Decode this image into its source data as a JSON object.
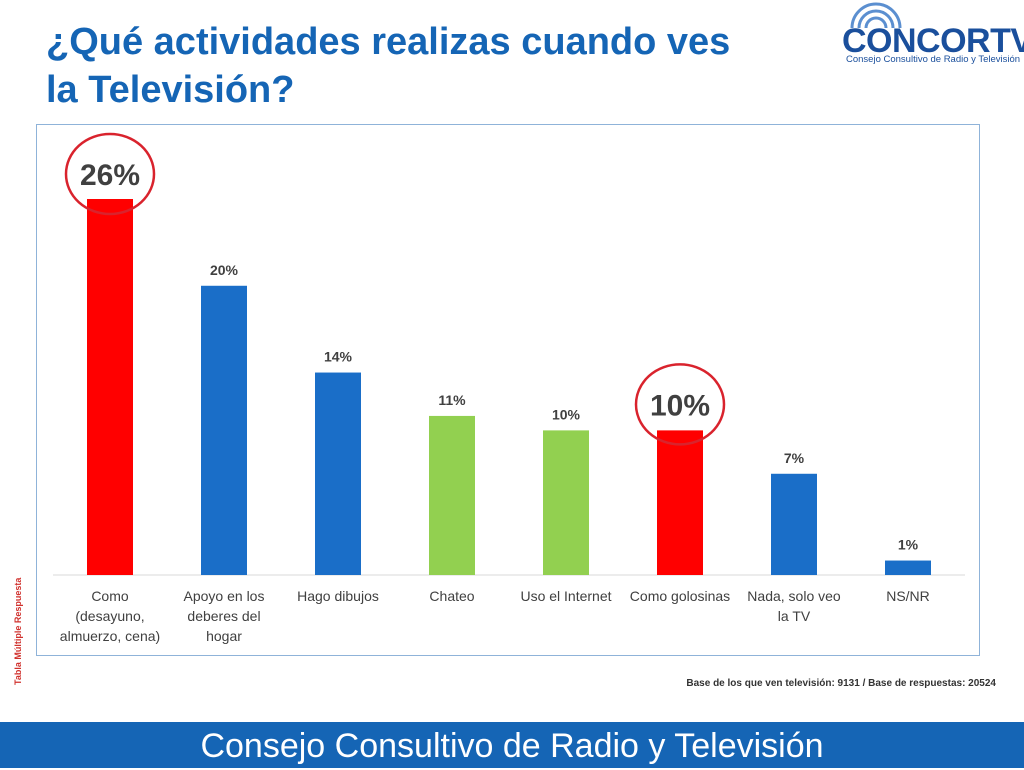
{
  "title_line1": "¿Qué actividades realizas cuando ves",
  "title_line2": "la Televisión?",
  "logo": {
    "name": "CONCORTV",
    "subtitle": "Consejo Consultivo de Radio y Televisión"
  },
  "side_note": "Tabla Múltiple Respuesta",
  "base_note": "Base de los que ven televisión: 9131 / Base de respuestas: 20524",
  "footer": "Consejo Consultivo de Radio y Televisión",
  "colors": {
    "red": "#ff0000",
    "blue": "#1a6ec8",
    "green": "#92d050",
    "circle": "#d9232d"
  },
  "chart_data": {
    "type": "bar",
    "title": "",
    "xlabel": "",
    "ylabel": "",
    "ylim": [
      0,
      26
    ],
    "grid": false,
    "categories": [
      [
        "Como",
        "(desayuno,",
        "almuerzo, cena)"
      ],
      [
        "Apoyo en los",
        "deberes del",
        "hogar"
      ],
      [
        "Hago dibujos"
      ],
      [
        "Chateo"
      ],
      [
        "Uso el Internet"
      ],
      [
        "Como golosinas"
      ],
      [
        "Nada, solo veo",
        "la TV"
      ],
      [
        "NS/NR"
      ]
    ],
    "values": [
      26,
      20,
      14,
      11,
      10,
      10,
      7,
      1
    ],
    "labels": [
      "26%",
      "20%",
      "14%",
      "11%",
      "10%",
      "10%",
      "7%",
      "1%"
    ],
    "bar_colors": [
      "red",
      "blue",
      "blue",
      "green",
      "green",
      "red",
      "blue",
      "blue"
    ],
    "highlighted": [
      0,
      5
    ]
  }
}
